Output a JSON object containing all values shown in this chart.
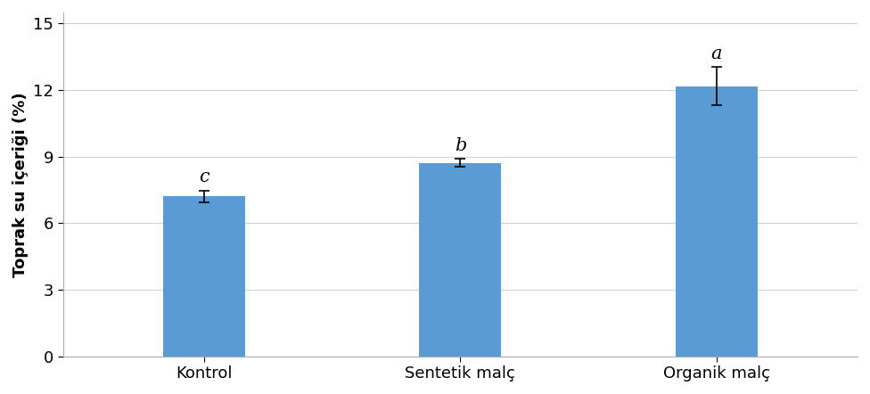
{
  "categories": [
    "Kontrol",
    "Sentetik malç",
    "Organik malç"
  ],
  "values": [
    7.2,
    8.72,
    12.18
  ],
  "errors": [
    0.28,
    0.18,
    0.85
  ],
  "letters": [
    "c",
    "b",
    "a"
  ],
  "bar_color": "#5b9bd5",
  "ylabel": "Toprak su içeriği (%)",
  "ylim": [
    0,
    15.5
  ],
  "yticks": [
    0,
    3,
    6,
    9,
    12,
    15
  ],
  "bar_width": 0.32,
  "letter_fontsize": 15,
  "label_fontsize": 13,
  "tick_fontsize": 13,
  "xtick_fontsize": 13,
  "errorbar_color": "black",
  "errorbar_capsize": 4,
  "errorbar_linewidth": 1.2,
  "grid_color": "#d0d0d0",
  "background_color": "#ffffff",
  "figsize": [
    9.76,
    4.42
  ],
  "dpi": 100
}
